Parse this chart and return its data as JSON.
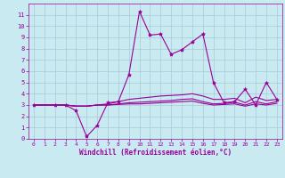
{
  "title": "",
  "xlabel": "Windchill (Refroidissement éolien,°C)",
  "ylabel": "",
  "bg_color": "#c8eaf0",
  "grid_color": "#a8c8d8",
  "line_color": "#990099",
  "xlim": [
    -0.5,
    23.5
  ],
  "ylim": [
    0,
    12
  ],
  "yticks": [
    0,
    1,
    2,
    3,
    4,
    5,
    6,
    7,
    8,
    9,
    10,
    11
  ],
  "xticks": [
    0,
    1,
    2,
    3,
    4,
    5,
    6,
    7,
    8,
    9,
    10,
    11,
    12,
    13,
    14,
    15,
    16,
    17,
    18,
    19,
    20,
    21,
    22,
    23
  ],
  "series": [
    {
      "x": [
        0,
        2,
        3,
        4,
        5,
        6,
        7,
        8,
        9,
        10,
        11,
        12,
        13,
        14,
        15,
        16,
        17,
        18,
        19,
        20,
        21,
        22,
        23
      ],
      "y": [
        3,
        3,
        3,
        2.5,
        0.2,
        1.2,
        3.2,
        3.3,
        5.7,
        11.3,
        9.2,
        9.3,
        7.5,
        7.9,
        8.6,
        9.3,
        5.0,
        3.2,
        3.3,
        4.4,
        3.0,
        5.0,
        3.5
      ],
      "style": "-",
      "marker": "*",
      "markersize": 3,
      "lw": 0.8
    },
    {
      "x": [
        0,
        1,
        2,
        3,
        4,
        5,
        6,
        7,
        8,
        9,
        10,
        11,
        12,
        13,
        14,
        15,
        16,
        17,
        18,
        19,
        20,
        21,
        22,
        23
      ],
      "y": [
        3,
        3,
        3,
        3,
        2.9,
        2.9,
        3.0,
        3.1,
        3.3,
        3.5,
        3.6,
        3.7,
        3.8,
        3.85,
        3.9,
        4.0,
        3.8,
        3.5,
        3.5,
        3.6,
        3.2,
        3.7,
        3.4,
        3.5
      ],
      "style": "-",
      "marker": null,
      "markersize": 0,
      "lw": 0.8
    },
    {
      "x": [
        0,
        1,
        2,
        3,
        4,
        5,
        6,
        7,
        8,
        9,
        10,
        11,
        12,
        13,
        14,
        15,
        16,
        17,
        18,
        19,
        20,
        21,
        22,
        23
      ],
      "y": [
        3,
        3,
        3,
        3,
        2.9,
        2.9,
        3.0,
        3.0,
        3.1,
        3.2,
        3.25,
        3.3,
        3.35,
        3.4,
        3.5,
        3.55,
        3.3,
        3.1,
        3.15,
        3.25,
        3.0,
        3.3,
        3.1,
        3.3
      ],
      "style": "-",
      "marker": null,
      "markersize": 0,
      "lw": 0.8
    },
    {
      "x": [
        0,
        1,
        2,
        3,
        4,
        5,
        6,
        7,
        8,
        9,
        10,
        11,
        12,
        13,
        14,
        15,
        16,
        17,
        18,
        19,
        20,
        21,
        22,
        23
      ],
      "y": [
        3,
        3,
        3,
        3,
        2.9,
        2.9,
        3.0,
        3.0,
        3.05,
        3.1,
        3.1,
        3.15,
        3.2,
        3.25,
        3.3,
        3.35,
        3.15,
        3.0,
        3.05,
        3.1,
        2.9,
        3.1,
        3.0,
        3.15
      ],
      "style": "-",
      "marker": null,
      "markersize": 0,
      "lw": 0.8
    }
  ]
}
